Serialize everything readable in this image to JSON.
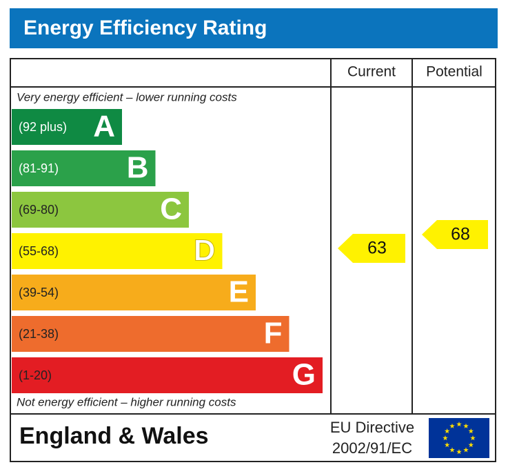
{
  "title": "Energy Efficiency Rating",
  "columns": [
    "Current",
    "Potential"
  ],
  "top_note": "Very energy efficient – lower running costs",
  "bottom_note": "Not energy efficient – higher running costs",
  "bands": [
    {
      "range": "(92 plus)",
      "letter": "A",
      "color": "#0f8a43",
      "label_color": "#ffffff"
    },
    {
      "range": "(81-91)",
      "letter": "B",
      "color": "#2ba14a",
      "label_color": "#ffffff"
    },
    {
      "range": "(69-80)",
      "letter": "C",
      "color": "#8cc63f",
      "label_color": "#222222"
    },
    {
      "range": "(55-68)",
      "letter": "D",
      "color": "#fff200",
      "label_color": "#222222"
    },
    {
      "range": "(39-54)",
      "letter": "E",
      "color": "#f7ac1b",
      "label_color": "#222222"
    },
    {
      "range": "(21-38)",
      "letter": "F",
      "color": "#ee6c2d",
      "label_color": "#222222"
    },
    {
      "range": "(1-20)",
      "letter": "G",
      "color": "#e31d23",
      "label_color": "#222222"
    }
  ],
  "ratings": {
    "current": 63,
    "potential": 68
  },
  "footer": {
    "region": "England & Wales",
    "directive": [
      "EU Directive",
      "2002/91/EC"
    ]
  }
}
